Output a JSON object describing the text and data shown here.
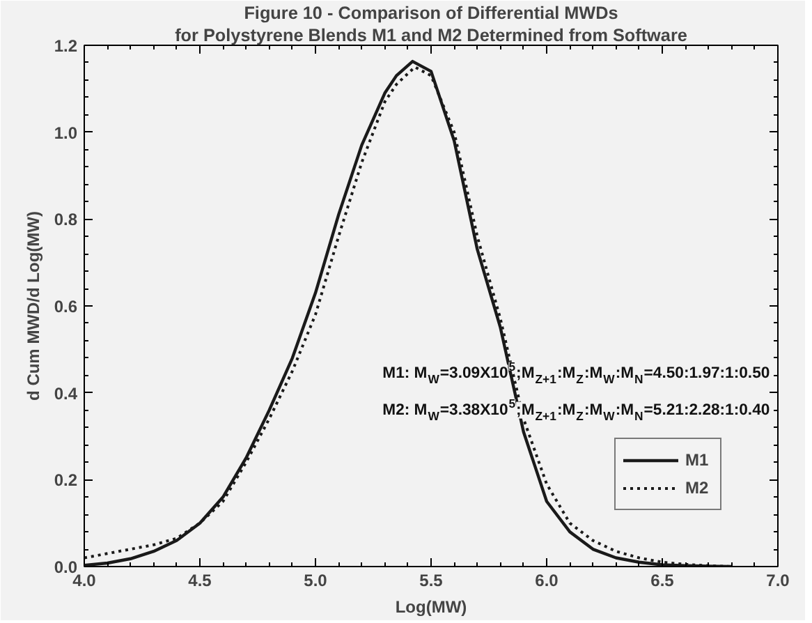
{
  "chart_data": {
    "type": "line",
    "title": "Figure 10 - Comparison of Differential MWDs",
    "subtitle": "for Polystyrene Blends M1 and M2 Determined from Software",
    "xlabel": "Log(MW)",
    "ylabel": "d Cum MWD/d Log(MW)",
    "xlim": [
      4.0,
      7.0
    ],
    "ylim": [
      0.0,
      1.2
    ],
    "xticks": [
      {
        "value": 4.0,
        "label": "4.0"
      },
      {
        "value": 4.5,
        "label": "4.5"
      },
      {
        "value": 5.0,
        "label": "5.0"
      },
      {
        "value": 5.5,
        "label": "5.5"
      },
      {
        "value": 6.0,
        "label": "6.0"
      },
      {
        "value": 6.5,
        "label": "6.5"
      },
      {
        "value": 7.0,
        "label": "7.0"
      }
    ],
    "yticks": [
      {
        "value": 0.0,
        "label": "0.0"
      },
      {
        "value": 0.2,
        "label": "0.2"
      },
      {
        "value": 0.4,
        "label": "0.4"
      },
      {
        "value": 0.6,
        "label": "0.6"
      },
      {
        "value": 0.8,
        "label": "0.8"
      },
      {
        "value": 1.0,
        "label": "1.0"
      },
      {
        "value": 1.2,
        "label": "1.2"
      }
    ],
    "grid": false,
    "legend": "bottom right",
    "marker": "none",
    "annotations": [
      "M1: M$_{W}$=3.09X10$^{5}$;M$_{Z+1}$:M$_{Z}$:M$_{W}$:M$_{N}$=4.50:1.97:1:0.50",
      "M2: M$_{W}$=3.38X10$^{5}$;M$_{Z+1}$:M$_{Z}$:M$_{W}$:M$_{N}$=5.21:2.28:1:0.40"
    ],
    "series": [
      {
        "name": "M1",
        "color": "#1a1a1a",
        "line_style": "solid",
        "x": [
          4.0,
          4.1,
          4.2,
          4.3,
          4.4,
          4.5,
          4.6,
          4.7,
          4.8,
          4.9,
          5.0,
          5.1,
          5.2,
          5.3,
          5.35,
          5.42,
          5.5,
          5.6,
          5.7,
          5.8,
          5.9,
          6.0,
          6.1,
          6.2,
          6.3,
          6.4,
          6.5,
          6.6,
          6.8
        ],
        "values": [
          0.003,
          0.008,
          0.018,
          0.035,
          0.06,
          0.1,
          0.16,
          0.25,
          0.36,
          0.48,
          0.63,
          0.81,
          0.97,
          1.09,
          1.13,
          1.163,
          1.14,
          0.98,
          0.73,
          0.55,
          0.31,
          0.15,
          0.08,
          0.04,
          0.02,
          0.01,
          0.004,
          0.002,
          0.0
        ]
      },
      {
        "name": "M2",
        "color": "#1a1a1a",
        "line_style": "dotted",
        "x": [
          4.0,
          4.1,
          4.2,
          4.3,
          4.4,
          4.5,
          4.6,
          4.7,
          4.8,
          4.9,
          5.0,
          5.1,
          5.2,
          5.3,
          5.35,
          5.43,
          5.5,
          5.6,
          5.7,
          5.8,
          5.9,
          6.0,
          6.1,
          6.2,
          6.3,
          6.4,
          6.5,
          6.6,
          6.7,
          6.8
        ],
        "values": [
          0.02,
          0.03,
          0.04,
          0.05,
          0.065,
          0.1,
          0.15,
          0.24,
          0.34,
          0.45,
          0.58,
          0.76,
          0.93,
          1.07,
          1.11,
          1.15,
          1.13,
          1.0,
          0.76,
          0.57,
          0.34,
          0.19,
          0.1,
          0.06,
          0.035,
          0.02,
          0.01,
          0.005,
          0.002,
          0.0
        ]
      }
    ]
  }
}
